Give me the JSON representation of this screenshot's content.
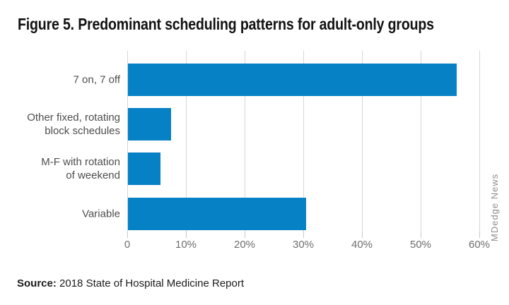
{
  "figure": {
    "source_label": "Source:",
    "source_text": " 2018 State of Hospital Medicine Report",
    "watermark": "MDedge News"
  },
  "chart_data": {
    "type": "bar",
    "orientation": "horizontal",
    "title": "Figure 5. Predominant scheduling patterns for adult-only groups",
    "categories": [
      "7 on, 7 off",
      "Other fixed, rotating\nblock schedules",
      "M-F with rotation\nof weekend",
      "Variable"
    ],
    "values": [
      56,
      7.4,
      5.6,
      30.4
    ],
    "unit": "%",
    "xlabel": "",
    "ylabel": "",
    "xlim": [
      0,
      62
    ],
    "x_ticks": [
      {
        "value": 0,
        "label": "0"
      },
      {
        "value": 10,
        "label": "10%"
      },
      {
        "value": 20,
        "label": "20%"
      },
      {
        "value": 30,
        "label": "30%"
      },
      {
        "value": 40,
        "label": "40%"
      },
      {
        "value": 50,
        "label": "50%"
      },
      {
        "value": 60,
        "label": "60%"
      }
    ],
    "grid": "vertical-gridlines",
    "legend": "none",
    "colors": {
      "bar": "#0681c5",
      "gridline": "#d6d6d6",
      "tick_mark": "#c9c9c9",
      "tick_label": "#6e6e6e",
      "category_label": "#4d4d4d",
      "title": "#121212",
      "source": "#1a1a1a",
      "watermark": "#8f8f8f"
    }
  }
}
